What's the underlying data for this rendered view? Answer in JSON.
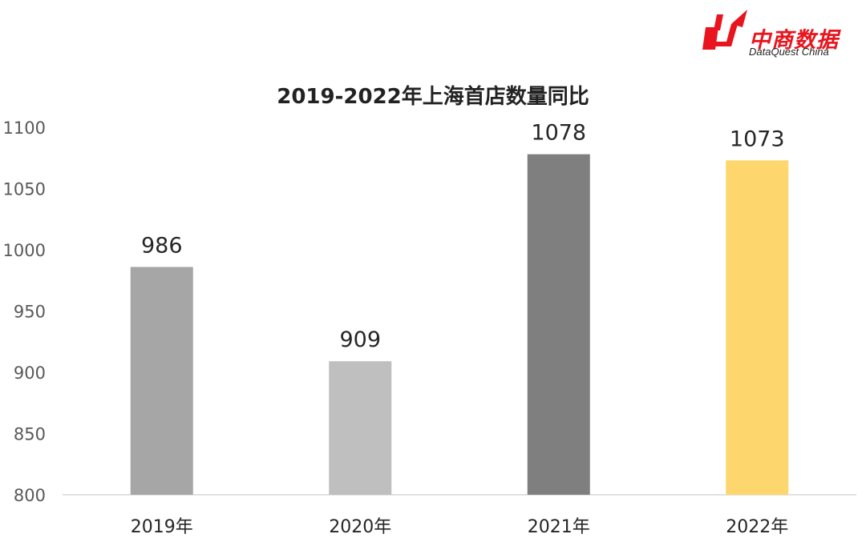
{
  "logo": {
    "cn": "中商数据",
    "en": "DataQuest China",
    "color": "#e8141e"
  },
  "chart_data": {
    "type": "bar",
    "title": "2019-2022年上海首店数量同比",
    "categories": [
      "2019年",
      "2020年",
      "2021年",
      "2022年"
    ],
    "values": [
      986,
      909,
      1078,
      1073
    ],
    "value_labels": [
      "986",
      "909",
      "1078",
      "1073"
    ],
    "colors": [
      "#a6a6a6",
      "#bfbfbf",
      "#7f7f7f",
      "#fdd76d"
    ],
    "ylim": [
      800,
      1100
    ],
    "yticks": [
      800,
      850,
      900,
      950,
      1000,
      1050,
      1100
    ],
    "xlabel": "",
    "ylabel": "",
    "grid": false,
    "legend": "none"
  }
}
